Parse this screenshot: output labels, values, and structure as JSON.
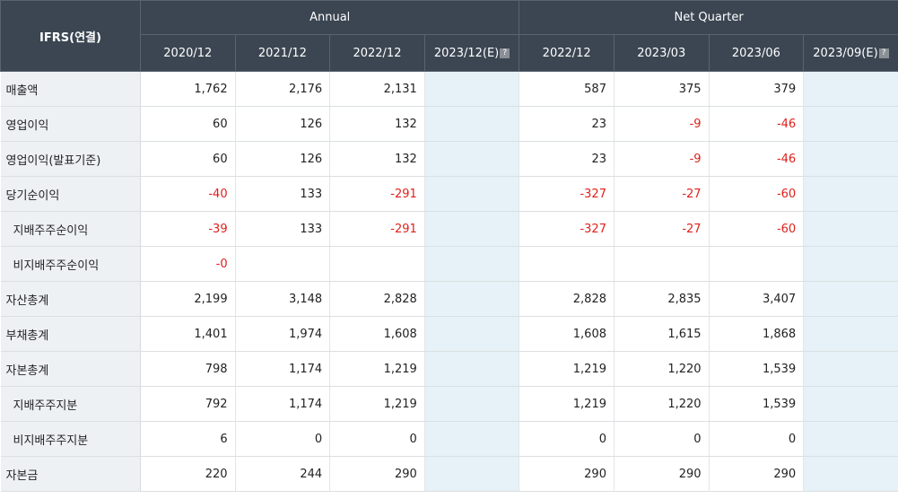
{
  "header": {
    "corner": "IFRS(연결)",
    "annual_label": "Annual",
    "quarter_label": "Net Quarter",
    "periods": [
      "2020/12",
      "2021/12",
      "2022/12",
      "2023/12(E)",
      "2022/12",
      "2023/03",
      "2023/06",
      "2023/09(E)"
    ],
    "estimate_icon": "help-icon"
  },
  "rows": [
    {
      "label": "매출액",
      "values": [
        "1,762",
        "2,176",
        "2,131",
        "",
        "587",
        "375",
        "379",
        ""
      ]
    },
    {
      "label": "영업이익",
      "values": [
        "60",
        "126",
        "132",
        "",
        "23",
        "-9",
        "-46",
        ""
      ]
    },
    {
      "label": "영업이익(발표기준)",
      "values": [
        "60",
        "126",
        "132",
        "",
        "23",
        "-9",
        "-46",
        ""
      ]
    },
    {
      "label": "당기순이익",
      "values": [
        "-40",
        "133",
        "-291",
        "",
        "-327",
        "-27",
        "-60",
        ""
      ]
    },
    {
      "label": "지배주주순이익",
      "values": [
        "-39",
        "133",
        "-291",
        "",
        "-327",
        "-27",
        "-60",
        ""
      ]
    },
    {
      "label": "비지배주주순이익",
      "values": [
        "-0",
        "",
        "",
        "",
        "",
        "",
        "",
        ""
      ]
    },
    {
      "label": "자산총계",
      "values": [
        "2,199",
        "3,148",
        "2,828",
        "",
        "2,828",
        "2,835",
        "3,407",
        ""
      ]
    },
    {
      "label": "부채총계",
      "values": [
        "1,401",
        "1,974",
        "1,608",
        "",
        "1,608",
        "1,615",
        "1,868",
        ""
      ]
    },
    {
      "label": "자본총계",
      "values": [
        "798",
        "1,174",
        "1,219",
        "",
        "1,219",
        "1,220",
        "1,539",
        ""
      ]
    },
    {
      "label": "지배주주지분",
      "values": [
        "792",
        "1,174",
        "1,219",
        "",
        "1,219",
        "1,220",
        "1,539",
        ""
      ]
    },
    {
      "label": "비지배주주지분",
      "values": [
        "6",
        "0",
        "0",
        "",
        "0",
        "0",
        "0",
        ""
      ]
    },
    {
      "label": "자본금",
      "values": [
        "220",
        "244",
        "290",
        "",
        "290",
        "290",
        "290",
        ""
      ]
    }
  ],
  "colors": {
    "header_bg": "#3b4652",
    "negative": "#e0201b",
    "estimate_bg": "#e6f2f7",
    "label_bg": "#eef1f4"
  }
}
